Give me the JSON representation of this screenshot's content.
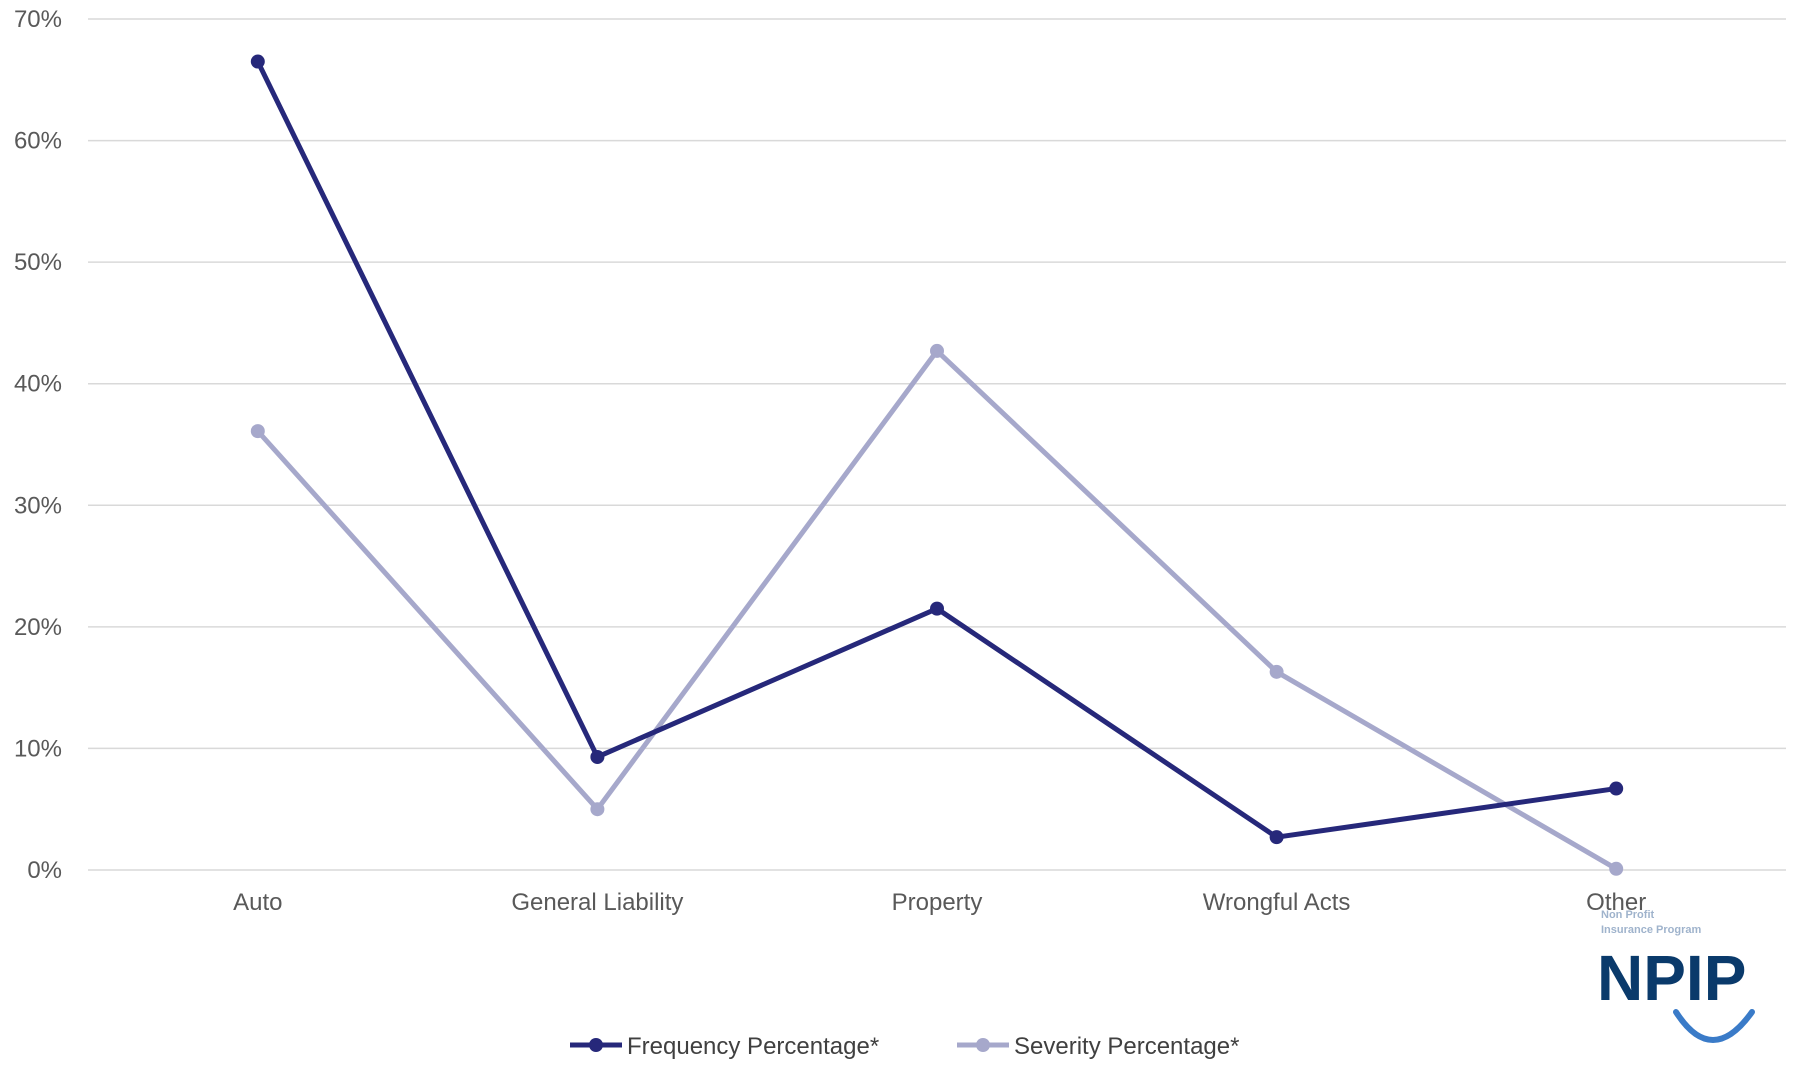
{
  "chart_data": {
    "type": "line",
    "categories": [
      "Auto",
      "General Liability",
      "Property",
      "Wrongful Acts",
      "Other"
    ],
    "series": [
      {
        "name": "Frequency Percentage*",
        "values": [
          66.5,
          9.3,
          21.5,
          2.7,
          6.7
        ],
        "color": "#26287a"
      },
      {
        "name": "Severity Percentage*",
        "values": [
          36.1,
          5.0,
          42.7,
          16.3,
          0.1
        ],
        "color": "#a6a8cb"
      }
    ],
    "yticks": [
      "0%",
      "10%",
      "20%",
      "30%",
      "40%",
      "50%",
      "60%",
      "70%"
    ],
    "ylim": [
      0,
      70
    ],
    "grid": true,
    "gridColor": "#d9d9d9",
    "legend": "bottom-center"
  },
  "logo": {
    "line1": "Non Profit",
    "line2": "Insurance Program",
    "mark": "NPIP",
    "color": "#0a3a6b",
    "accent": "#3a7bc8"
  }
}
